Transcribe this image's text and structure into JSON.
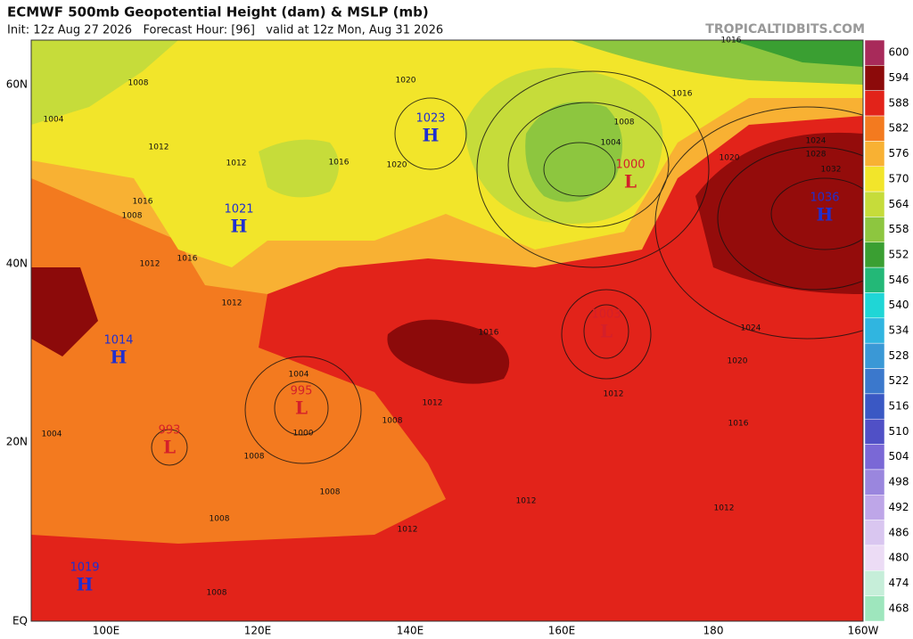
{
  "header": {
    "title": "ECMWF 500mb Geopotential Height (dam) & MSLP (mb)",
    "subtitle": "Init: 12z Aug 27 2026   Forecast Hour: [96]   valid at 12z Mon, Aug 31 2026",
    "brand": "TROPICALTIDBITS.COM"
  },
  "map": {
    "lat_labels": [
      "60N",
      "40N",
      "20N",
      "EQ"
    ],
    "lon_labels": [
      "100E",
      "120E",
      "140E",
      "160E",
      "180",
      "160W"
    ],
    "pressure_centers": [
      {
        "label": "H",
        "value": "1023"
      },
      {
        "label": "H",
        "value": "1021"
      },
      {
        "label": "L",
        "value": "1000"
      },
      {
        "label": "H",
        "value": "1036"
      },
      {
        "label": "L",
        "value": "1003"
      },
      {
        "label": "H",
        "value": "1014"
      },
      {
        "label": "L",
        "value": "995"
      },
      {
        "label": "L",
        "value": "993"
      },
      {
        "label": "H",
        "value": "1019"
      }
    ],
    "isobar_labels": [
      "1008",
      "1004",
      "1012",
      "1016",
      "1008",
      "1020",
      "1016",
      "1012",
      "1020",
      "1016",
      "1004",
      "1008",
      "1016",
      "1024",
      "1028",
      "1032",
      "1020",
      "1024",
      "1020",
      "1016",
      "1016",
      "1012",
      "1008",
      "1012",
      "1004",
      "1000",
      "1008",
      "1012",
      "1008",
      "1012",
      "1008",
      "1004",
      "1016",
      "1012",
      "1012",
      "1008",
      "1012"
    ]
  },
  "colorbar": {
    "entries": [
      {
        "label": "600",
        "color": "#a82a5a"
      },
      {
        "label": "594",
        "color": "#8c0a0a"
      },
      {
        "label": "588",
        "color": "#e2231a"
      },
      {
        "label": "582",
        "color": "#f37a1f"
      },
      {
        "label": "576",
        "color": "#f8b133"
      },
      {
        "label": "570",
        "color": "#f2e52a"
      },
      {
        "label": "564",
        "color": "#c6dc3a"
      },
      {
        "label": "558",
        "color": "#8dc63f"
      },
      {
        "label": "552",
        "color": "#3a9f32"
      },
      {
        "label": "546",
        "color": "#23b877"
      },
      {
        "label": "540",
        "color": "#1fd6d6"
      },
      {
        "label": "534",
        "color": "#30b5e0"
      },
      {
        "label": "528",
        "color": "#3a98d6"
      },
      {
        "label": "522",
        "color": "#3b78cc"
      },
      {
        "label": "516",
        "color": "#3a58c4"
      },
      {
        "label": "510",
        "color": "#5050c6"
      },
      {
        "label": "504",
        "color": "#7a68d6"
      },
      {
        "label": "498",
        "color": "#9a86de"
      },
      {
        "label": "492",
        "color": "#bea6e8"
      },
      {
        "label": "486",
        "color": "#d9c6f0"
      },
      {
        "label": "480",
        "color": "#ecdcf5"
      },
      {
        "label": "474",
        "color": "#c6eed9"
      },
      {
        "label": "468",
        "color": "#9ee6bd"
      }
    ]
  }
}
